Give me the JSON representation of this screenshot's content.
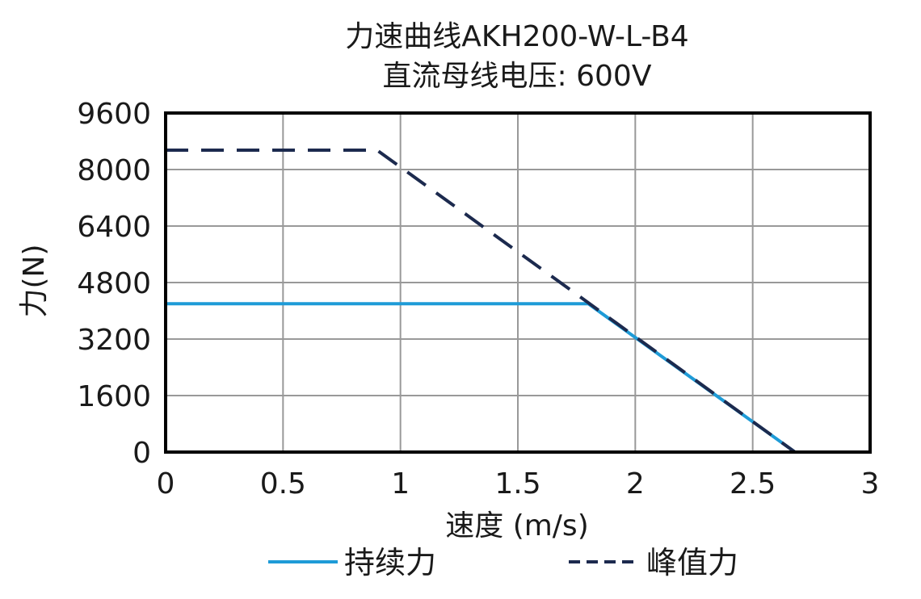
{
  "chart_data": {
    "type": "line",
    "title": "力速曲线AKH200-W-L-B4",
    "subtitle": "直流母线电压: 600V",
    "xlabel": "速度 (m/s)",
    "ylabel": "力(N)",
    "xlim": [
      0,
      3
    ],
    "ylim": [
      0,
      9600
    ],
    "x_ticks": [
      "0",
      "0.5",
      "1",
      "1.5",
      "2",
      "2.5",
      "3"
    ],
    "y_ticks": [
      "0",
      "1600",
      "3200",
      "4800",
      "6400",
      "8000",
      "9600"
    ],
    "grid": true,
    "legend_position": "bottom",
    "series": [
      {
        "name": "持续力",
        "color": "#1e9bd7",
        "style": "solid",
        "points": [
          [
            0,
            4200
          ],
          [
            1.8,
            4200
          ],
          [
            2.68,
            0
          ]
        ]
      },
      {
        "name": "峰值力",
        "color": "#1c2a4e",
        "style": "dashed",
        "points": [
          [
            0,
            8550
          ],
          [
            0.9,
            8550
          ],
          [
            2.68,
            0
          ]
        ]
      }
    ]
  }
}
